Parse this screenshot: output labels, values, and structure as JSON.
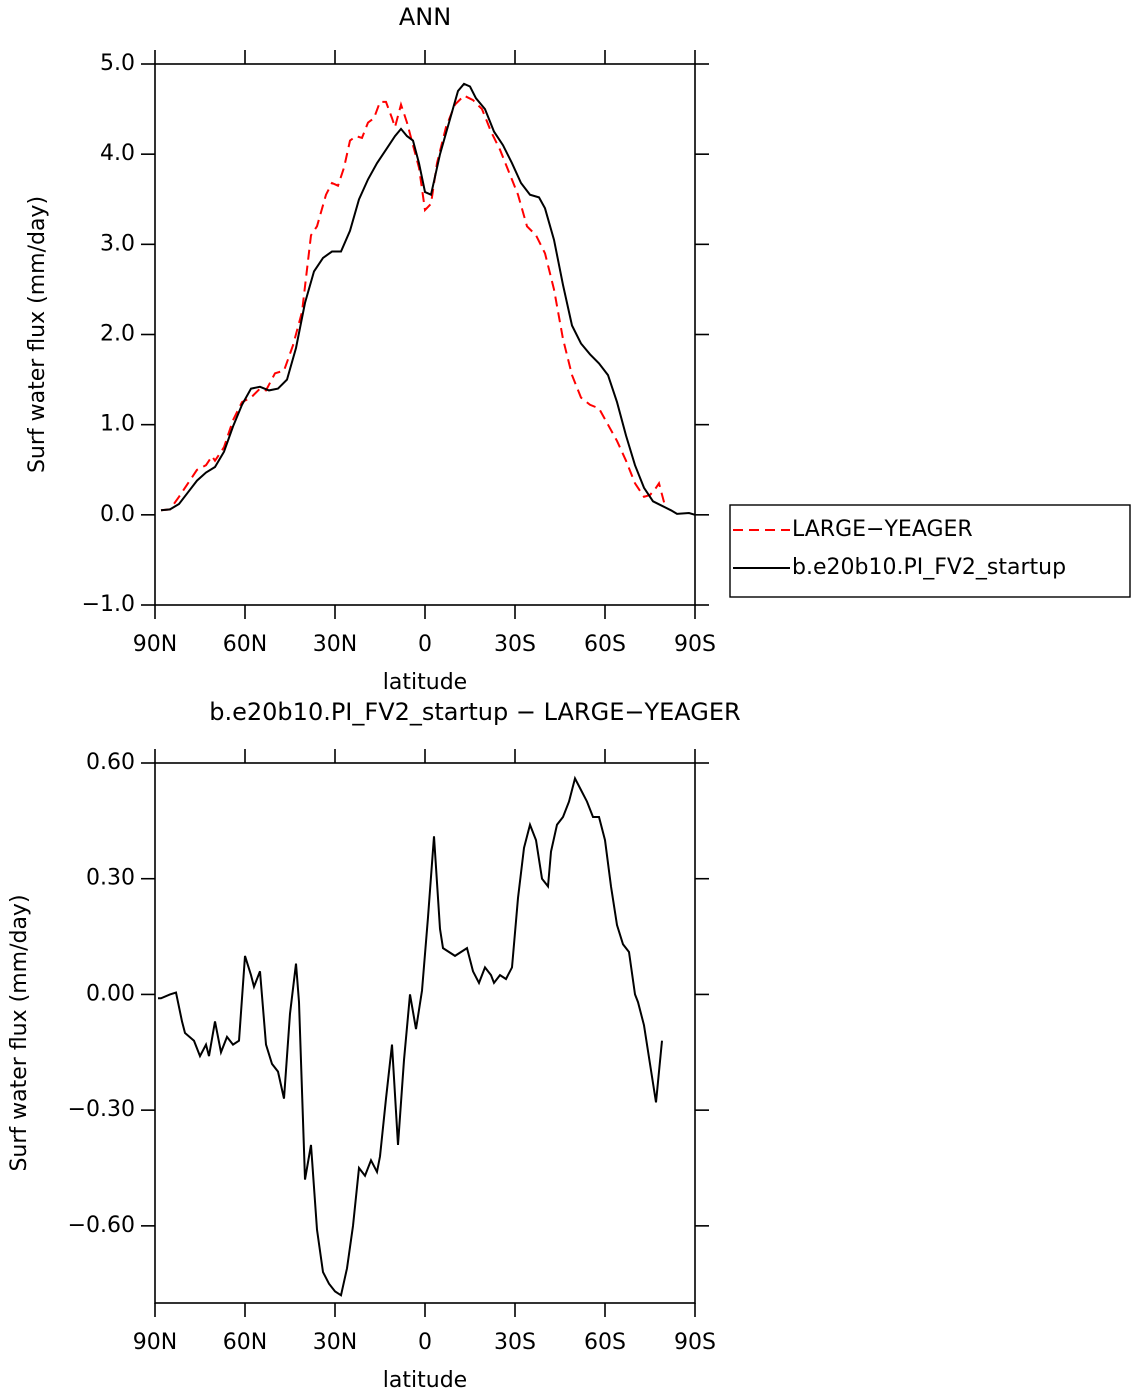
{
  "chart_data": [
    {
      "type": "line",
      "title": "ANN",
      "xlabel": "latitude",
      "ylabel": "Surf water flux (mm/day)",
      "xlim": [
        90,
        -90
      ],
      "ylim": [
        -1.0,
        5.0
      ],
      "xticks": [
        {
          "value": 90,
          "label": "90N"
        },
        {
          "value": 60,
          "label": "60N"
        },
        {
          "value": 30,
          "label": "30N"
        },
        0,
        {
          "value": -30,
          "label": "30S"
        },
        {
          "value": -60,
          "label": "60S"
        },
        {
          "value": -90,
          "label": "90S"
        }
      ],
      "yticks": [
        {
          "value": -1.0,
          "label": "−1.0"
        },
        {
          "value": 0.0,
          "label": "0.0"
        },
        {
          "value": 1.0,
          "label": "1.0"
        },
        {
          "value": 2.0,
          "label": "2.0"
        },
        {
          "value": 3.0,
          "label": "3.0"
        },
        {
          "value": 4.0,
          "label": "4.0"
        },
        {
          "value": 5.0,
          "label": "5.0"
        }
      ],
      "legend": "outside-right",
      "series": [
        {
          "name": "LARGE−YEAGER",
          "color": "#ff0000",
          "line_style": "dashed",
          "x": [
            88,
            85,
            82,
            79,
            76,
            73,
            71,
            70,
            67,
            64,
            61,
            58,
            55,
            53,
            50,
            47,
            44,
            41,
            38,
            36,
            33,
            31,
            29,
            27,
            25,
            23,
            21,
            19,
            17,
            15,
            13,
            11,
            10,
            8,
            6,
            4,
            2,
            0,
            -2,
            -4,
            -7,
            -10,
            -13,
            -16,
            -19,
            -22,
            -25,
            -28,
            -31,
            -34,
            -37,
            -40,
            -43,
            -46,
            -49,
            -52,
            -55,
            -58,
            -61,
            -64,
            -67,
            -70,
            -73,
            -75,
            -77,
            -78,
            -80
          ],
          "values": [
            0.05,
            0.06,
            0.2,
            0.35,
            0.5,
            0.55,
            0.65,
            0.6,
            0.75,
            1.05,
            1.25,
            1.3,
            1.4,
            1.38,
            1.57,
            1.6,
            1.88,
            2.25,
            3.1,
            3.2,
            3.55,
            3.68,
            3.65,
            3.85,
            4.15,
            4.2,
            4.18,
            4.35,
            4.4,
            4.58,
            4.58,
            4.4,
            4.3,
            4.55,
            4.35,
            4.1,
            3.85,
            3.38,
            3.45,
            3.9,
            4.3,
            4.55,
            4.65,
            4.6,
            4.5,
            4.25,
            4.05,
            3.8,
            3.55,
            3.2,
            3.1,
            2.9,
            2.5,
            1.95,
            1.55,
            1.3,
            1.22,
            1.18,
            1.0,
            0.82,
            0.6,
            0.35,
            0.2,
            0.22,
            0.3,
            0.35,
            0.1
          ]
        },
        {
          "name": "b.e20b10.PI_FV2_startup",
          "color": "#000000",
          "line_style": "solid",
          "x": [
            88,
            85,
            82,
            79,
            76,
            73,
            70,
            67,
            64,
            61,
            58,
            55,
            52,
            49,
            46,
            43,
            40,
            37,
            34,
            31,
            28,
            25,
            22,
            19,
            16,
            13,
            10,
            8,
            6,
            4,
            2,
            0,
            -2,
            -5,
            -8,
            -11,
            -13,
            -15,
            -17,
            -20,
            -23,
            -26,
            -29,
            -32,
            -35,
            -38,
            -40,
            -43,
            -46,
            -49,
            -52,
            -55,
            -58,
            -61,
            -64,
            -67,
            -70,
            -73,
            -76,
            -79,
            -82,
            -84,
            -88,
            -90
          ],
          "values": [
            0.05,
            0.06,
            0.12,
            0.25,
            0.38,
            0.47,
            0.53,
            0.7,
            0.98,
            1.22,
            1.4,
            1.42,
            1.38,
            1.4,
            1.5,
            1.85,
            2.35,
            2.7,
            2.85,
            2.92,
            2.92,
            3.15,
            3.5,
            3.72,
            3.9,
            4.05,
            4.2,
            4.28,
            4.2,
            4.15,
            3.9,
            3.58,
            3.55,
            4.0,
            4.35,
            4.7,
            4.78,
            4.75,
            4.62,
            4.5,
            4.25,
            4.1,
            3.9,
            3.68,
            3.55,
            3.52,
            3.4,
            3.05,
            2.55,
            2.1,
            1.9,
            1.78,
            1.68,
            1.55,
            1.25,
            0.88,
            0.55,
            0.3,
            0.15,
            0.1,
            0.05,
            0.01,
            0.02,
            0.0
          ]
        }
      ]
    },
    {
      "type": "line",
      "title": "b.e20b10.PI_FV2_startup − LARGE−YEAGER",
      "xlabel": "latitude",
      "ylabel": "Surf water flux (mm/day)",
      "xlim": [
        90,
        -90
      ],
      "ylim": [
        -0.8,
        0.6
      ],
      "xticks": [
        {
          "value": 90,
          "label": "90N"
        },
        {
          "value": 60,
          "label": "60N"
        },
        {
          "value": 30,
          "label": "30N"
        },
        0,
        {
          "value": -30,
          "label": "30S"
        },
        {
          "value": -60,
          "label": "60S"
        },
        {
          "value": -90,
          "label": "90S"
        }
      ],
      "yticks": [
        {
          "value": -0.6,
          "label": "−0.60"
        },
        {
          "value": -0.3,
          "label": "−0.30"
        },
        {
          "value": 0.0,
          "label": "0.00"
        },
        {
          "value": 0.3,
          "label": "0.30"
        },
        {
          "value": 0.6,
          "label": "0.60"
        }
      ],
      "series": [
        {
          "color": "#000000",
          "line_style": "solid",
          "x": [
            89,
            88,
            85,
            83,
            81,
            80,
            77,
            75,
            73,
            72,
            70,
            68,
            66,
            64,
            62,
            60,
            58,
            57,
            55,
            53,
            51,
            49,
            47,
            45,
            43,
            42,
            40,
            38,
            36,
            34,
            32,
            30,
            28,
            26,
            24,
            22,
            20,
            18,
            16,
            15,
            13,
            11,
            9,
            7,
            5,
            3,
            1,
            -1,
            -3,
            -5,
            -6,
            -8,
            -10,
            -12,
            -14,
            -16,
            -18,
            -20,
            -22,
            -23,
            -25,
            -27,
            -29,
            -31,
            -33,
            -35,
            -37,
            -39,
            -41,
            -42,
            -44,
            -46,
            -48,
            -50,
            -52,
            -54,
            -56,
            -58,
            -60,
            -62,
            -64,
            -66,
            -68,
            -70,
            -71,
            -73,
            -75,
            -77,
            -79
          ],
          "values": [
            -0.01,
            -0.01,
            0.0,
            0.005,
            -0.07,
            -0.1,
            -0.12,
            -0.16,
            -0.13,
            -0.16,
            -0.07,
            -0.15,
            -0.11,
            -0.13,
            -0.12,
            0.1,
            0.05,
            0.02,
            0.06,
            -0.13,
            -0.18,
            -0.2,
            -0.27,
            -0.05,
            0.08,
            -0.02,
            -0.48,
            -0.39,
            -0.61,
            -0.72,
            -0.75,
            -0.77,
            -0.78,
            -0.71,
            -0.6,
            -0.45,
            -0.47,
            -0.43,
            -0.46,
            -0.42,
            -0.27,
            -0.13,
            -0.39,
            -0.17,
            0.0,
            -0.09,
            0.01,
            0.2,
            0.41,
            0.17,
            0.12,
            0.11,
            0.1,
            0.11,
            0.12,
            0.06,
            0.03,
            0.07,
            0.05,
            0.03,
            0.05,
            0.04,
            0.07,
            0.25,
            0.38,
            0.44,
            0.4,
            0.3,
            0.28,
            0.37,
            0.44,
            0.46,
            0.5,
            0.56,
            0.53,
            0.5,
            0.46,
            0.46,
            0.4,
            0.28,
            0.18,
            0.13,
            0.11,
            0.0,
            -0.02,
            -0.08,
            -0.18,
            -0.28,
            -0.12
          ]
        }
      ]
    }
  ]
}
